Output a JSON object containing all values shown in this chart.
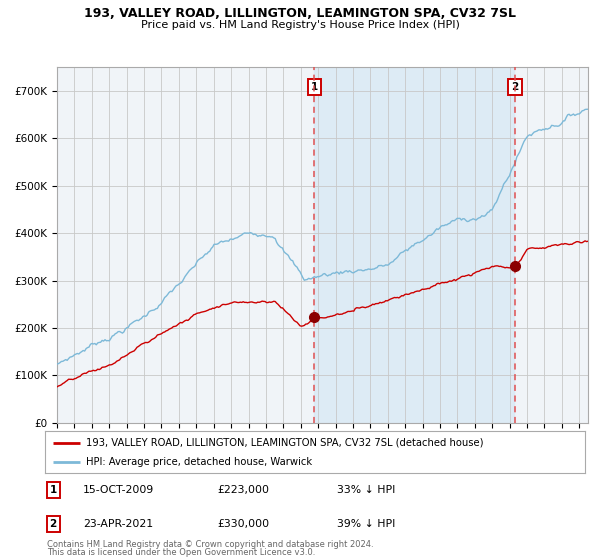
{
  "title1": "193, VALLEY ROAD, LILLINGTON, LEAMINGTON SPA, CV32 7SL",
  "title2": "Price paid vs. HM Land Registry's House Price Index (HPI)",
  "legend_line1": "193, VALLEY ROAD, LILLINGTON, LEAMINGTON SPA, CV32 7SL (detached house)",
  "legend_line2": "HPI: Average price, detached house, Warwick",
  "annotation1_date": "15-OCT-2009",
  "annotation1_price": "£223,000",
  "annotation1_hpi": "33% ↓ HPI",
  "annotation1_year": 2009.79,
  "annotation1_value": 223000,
  "annotation2_date": "23-APR-2021",
  "annotation2_price": "£330,000",
  "annotation2_hpi": "39% ↓ HPI",
  "annotation2_year": 2021.31,
  "annotation2_value": 330000,
  "hpi_color": "#7db9d8",
  "price_color": "#cc0000",
  "point_color": "#8b0000",
  "shade_color": "#daeaf5",
  "dashed_line_color": "#e05050",
  "grid_color": "#c8c8c8",
  "bg_color": "#ffffff",
  "plot_bg_color": "#f0f4f8",
  "ylim": [
    0,
    750000
  ],
  "footnote1": "Contains HM Land Registry data © Crown copyright and database right 2024.",
  "footnote2": "This data is licensed under the Open Government Licence v3.0."
}
